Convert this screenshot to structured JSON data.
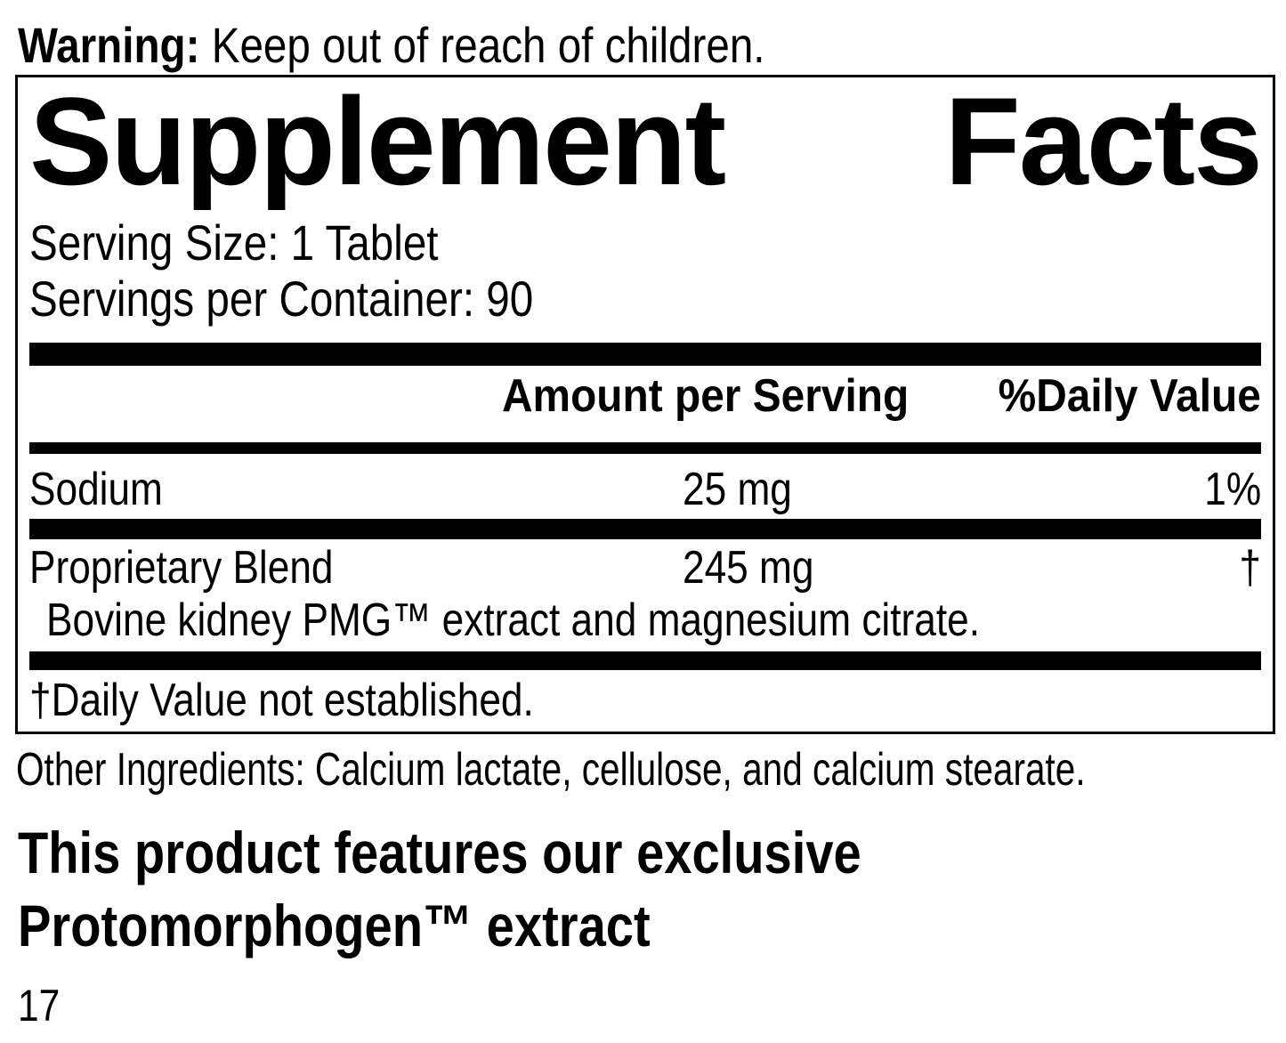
{
  "colors": {
    "text": "#000000",
    "background": "#ffffff",
    "divider_bar": "#000000"
  },
  "warning": {
    "label": "Warning:",
    "text": " Keep out of reach of children."
  },
  "supplement_facts": {
    "title_word1": "Supplement",
    "title_word2": "Facts",
    "serving_size": "Serving Size: 1 Tablet",
    "servings_per_container": "Servings per Container: 90",
    "column_headers": {
      "amount": "Amount per Serving",
      "daily_value": "%Daily Value"
    },
    "rows": [
      {
        "name": "Sodium",
        "amount": "25 mg",
        "daily_value": "1%"
      },
      {
        "name": "Proprietary Blend",
        "amount": "245 mg",
        "daily_value": "†",
        "description": "Bovine kidney PMG™ extract and magnesium citrate."
      }
    ],
    "footnote": "†Daily Value not established."
  },
  "other_ingredients": "Other Ingredients: Calcium lactate, cellulose, and calcium stearate.",
  "feature_note": {
    "line1": "This product features our exclusive",
    "line2": "Protomorphogen™ extract"
  },
  "page_number": "17"
}
